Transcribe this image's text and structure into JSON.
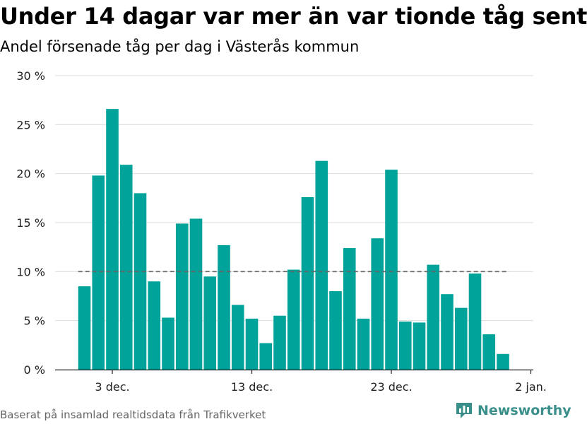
{
  "title": "Under 14 dagar var mer än var tionde tåg sent",
  "subtitle": "Andel försenade tåg per dag i Västerås kommun",
  "footer": "Baserat på insamlad realtidsdata från Trafikverket",
  "brand": "Newsworthy",
  "colors": {
    "bar": "#00a39a",
    "grid": "#dddddd",
    "reference": "#666666",
    "brand": "#3b8f8a"
  },
  "chart_data": {
    "type": "bar",
    "x": [
      "2021-12-01",
      "2021-12-02",
      "2021-12-03",
      "2021-12-04",
      "2021-12-05",
      "2021-12-06",
      "2021-12-07",
      "2021-12-08",
      "2021-12-09",
      "2021-12-10",
      "2021-12-11",
      "2021-12-12",
      "2021-12-13",
      "2021-12-14",
      "2021-12-15",
      "2021-12-16",
      "2021-12-17",
      "2021-12-18",
      "2021-12-19",
      "2021-12-20",
      "2021-12-21",
      "2021-12-22",
      "2021-12-23",
      "2021-12-24",
      "2021-12-25",
      "2021-12-26",
      "2021-12-27",
      "2021-12-28",
      "2021-12-29",
      "2021-12-30",
      "2021-12-31"
    ],
    "values": [
      8.5,
      19.8,
      26.6,
      20.9,
      18.0,
      9.0,
      5.3,
      14.9,
      15.4,
      9.5,
      12.7,
      6.6,
      5.2,
      2.7,
      5.5,
      10.2,
      17.6,
      21.3,
      8.0,
      12.4,
      5.2,
      13.4,
      20.4,
      4.9,
      4.8,
      10.7,
      7.7,
      6.3,
      9.8,
      3.6,
      1.6
    ],
    "reference_line": 10,
    "ylim": [
      0,
      30
    ],
    "yticks": [
      0,
      5,
      10,
      15,
      20,
      25,
      30
    ],
    "ytick_labels": [
      "0 %",
      "5 %",
      "10 %",
      "15 %",
      "20 %",
      "25 %",
      "30 %"
    ],
    "xtick_dates": [
      "2021-12-03",
      "2021-12-13",
      "2021-12-23",
      "2022-01-02"
    ],
    "xtick_labels": [
      "3 dec.",
      "13 dec.",
      "23 dec.",
      "2 jan."
    ],
    "grid": true
  }
}
